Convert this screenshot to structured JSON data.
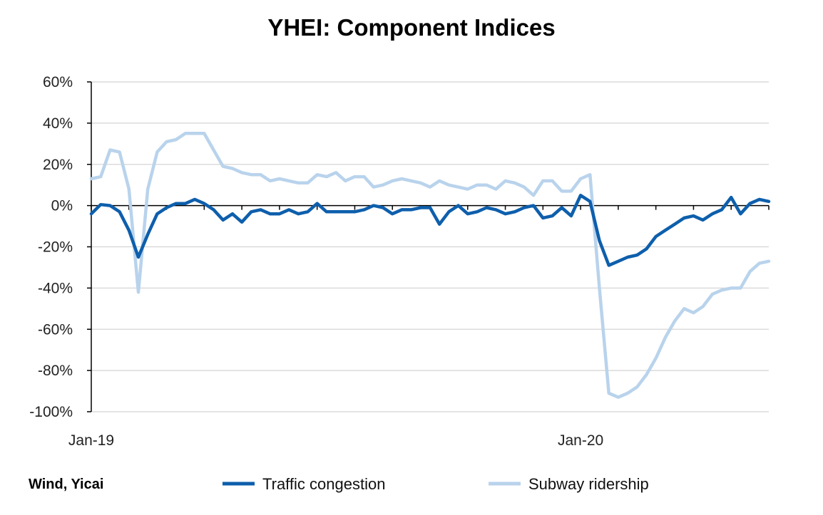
{
  "chart_data": {
    "type": "line",
    "title": "YHEI: Component Indices",
    "xlabel": "",
    "ylabel": "",
    "ylim": [
      -100,
      60
    ],
    "y_ticks": [
      "60%",
      "40%",
      "20%",
      "0%",
      "-20%",
      "-40%",
      "-60%",
      "-80%",
      "-100%"
    ],
    "y_tick_values": [
      60,
      40,
      20,
      0,
      -20,
      -40,
      -60,
      -80,
      -100
    ],
    "x_tick_labels": [
      {
        "label": "Jan-19",
        "index": 0
      },
      {
        "label": "Jan-20",
        "index": 52
      }
    ],
    "grid": "horizontal",
    "legend_position": "bottom",
    "source": "Wind, Yicai",
    "series": [
      {
        "name": "Traffic congestion",
        "color": "#0e5fac",
        "values": [
          -4,
          0.5,
          0,
          -3,
          -12,
          -25,
          -14,
          -4,
          -1,
          1,
          1,
          3,
          1,
          -2,
          -7,
          -4,
          -8,
          -3,
          -2,
          -4,
          -4,
          -2,
          -4,
          -3,
          1,
          -3,
          -3,
          -3,
          -3,
          -2,
          0,
          -1,
          -4,
          -2,
          -2,
          -1,
          -1,
          -9,
          -3,
          0,
          -4,
          -3,
          -1,
          -2,
          -4,
          -3,
          -1,
          0,
          -6,
          -5,
          -1,
          -5,
          5,
          2,
          -17,
          -29,
          -27,
          -25,
          -24,
          -21,
          -15,
          -12,
          -9,
          -6,
          -5,
          -7,
          -4,
          -2,
          4,
          -4,
          1,
          3,
          2
        ]
      },
      {
        "name": "Subway ridership",
        "color": "#b9d3ec",
        "values": [
          13,
          14,
          27,
          26,
          8,
          -42,
          8,
          26,
          31,
          32,
          35,
          35,
          35,
          27,
          19,
          18,
          16,
          15,
          15,
          12,
          13,
          12,
          11,
          11,
          15,
          14,
          16,
          12,
          14,
          14,
          9,
          10,
          12,
          13,
          12,
          11,
          9,
          12,
          10,
          9,
          8,
          10,
          10,
          8,
          12,
          11,
          9,
          5,
          12,
          12,
          7,
          7,
          13,
          15,
          -40,
          -91,
          -93,
          -91,
          -88,
          -82,
          -74,
          -64,
          -56,
          -50,
          -52,
          -49,
          -43,
          -41,
          -40,
          -40,
          -32,
          -28,
          -27
        ]
      }
    ]
  }
}
